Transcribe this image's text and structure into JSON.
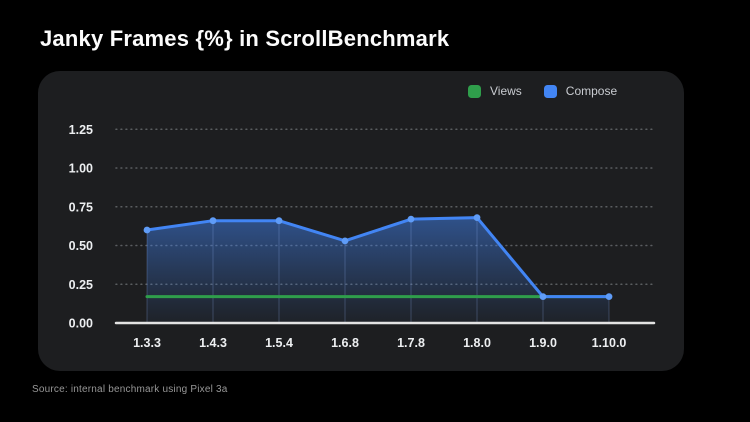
{
  "page": {
    "title": "Janky Frames {%} in ScrollBenchmark",
    "footer": "Source: internal benchmark using Pixel 3a",
    "background_color": "#000000",
    "panel_color": "#1d1e20"
  },
  "legend": {
    "position": "top-right",
    "items": [
      {
        "label": "Views",
        "color": "#2f9e4b"
      },
      {
        "label": "Compose",
        "color": "#4285f4"
      }
    ]
  },
  "chart_data": {
    "type": "line",
    "title": "Janky Frames {%} in ScrollBenchmark",
    "categories": [
      "1.3.3",
      "1.4.3",
      "1.5.4",
      "1.6.8",
      "1.7.8",
      "1.8.0",
      "1.9.0",
      "1.10.0"
    ],
    "series": [
      {
        "name": "Views",
        "color": "#2f9e4b",
        "values": [
          0.17,
          0.17,
          0.17,
          0.17,
          0.17,
          0.17,
          0.17,
          0.17
        ],
        "markers": false,
        "area": false
      },
      {
        "name": "Compose",
        "color": "#4285f4",
        "marker_color": "#5f9cf7",
        "values": [
          0.6,
          0.66,
          0.66,
          0.53,
          0.67,
          0.68,
          0.17,
          0.17
        ],
        "markers": true,
        "area": true
      }
    ],
    "xlabel": "",
    "ylabel": "",
    "ylim": [
      0,
      1.25
    ],
    "yticks": [
      0,
      0.25,
      0.5,
      0.75,
      1.0,
      1.25
    ],
    "ytick_labels": [
      "0.00",
      "0.25",
      "0.50",
      "0.75",
      "1.00",
      "1.25"
    ],
    "grid": "horizontal-dotted",
    "gridline_color": "#5a5d60",
    "axis_line_color": "#e3e3e3",
    "tick_label_color": "#edeff1",
    "legend_position": "top-right"
  }
}
